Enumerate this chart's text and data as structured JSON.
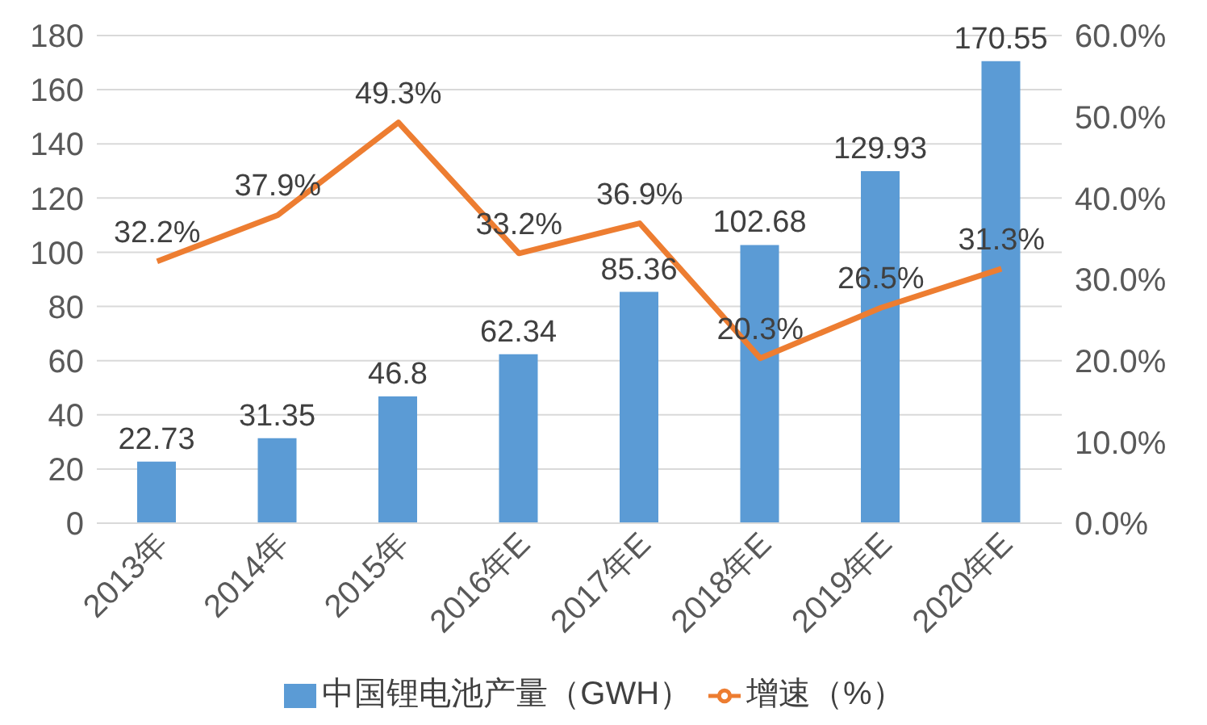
{
  "chart_data": {
    "type": "bar",
    "categories": [
      "2013年",
      "2014年",
      "2015年",
      "2016年E",
      "2017年E",
      "2018年E",
      "2019年E",
      "2020年E"
    ],
    "series": [
      {
        "name": "中国锂电池产量（GWH）",
        "color": "#5b9bd5",
        "values": [
          22.73,
          31.35,
          46.8,
          62.34,
          85.36,
          102.68,
          129.93,
          170.55
        ],
        "value_labels": [
          "22.73",
          "31.35",
          "46.8",
          "62.34",
          "85.36",
          "102.68",
          "129.93",
          "170.55"
        ]
      },
      {
        "name": "增速（%）",
        "type": "line",
        "axis": "y2",
        "color": "#ed7d31",
        "values": [
          32.2,
          37.9,
          49.3,
          33.2,
          36.9,
          20.3,
          26.5,
          31.3
        ],
        "value_labels": [
          "32.2%",
          "37.9%",
          "49.3%",
          "33.2%",
          "36.9%",
          "20.3%",
          "26.5%",
          "31.3%"
        ]
      }
    ],
    "ylim": [
      0,
      180
    ],
    "yticks": [
      0,
      20,
      40,
      60,
      80,
      100,
      120,
      140,
      160,
      180
    ],
    "y2lim": [
      0,
      60
    ],
    "y2ticks": [
      {
        "value": 0,
        "label": "0.0%"
      },
      {
        "value": 10,
        "label": "10.0%"
      },
      {
        "value": 20,
        "label": "20.0%"
      },
      {
        "value": 30,
        "label": "30.0%"
      },
      {
        "value": 40,
        "label": "40.0%"
      },
      {
        "value": 50,
        "label": "50.0%"
      },
      {
        "value": 60,
        "label": "60.0%"
      }
    ],
    "grid": "y",
    "legend": "bottom",
    "marker": "none",
    "line_style": "solid"
  }
}
